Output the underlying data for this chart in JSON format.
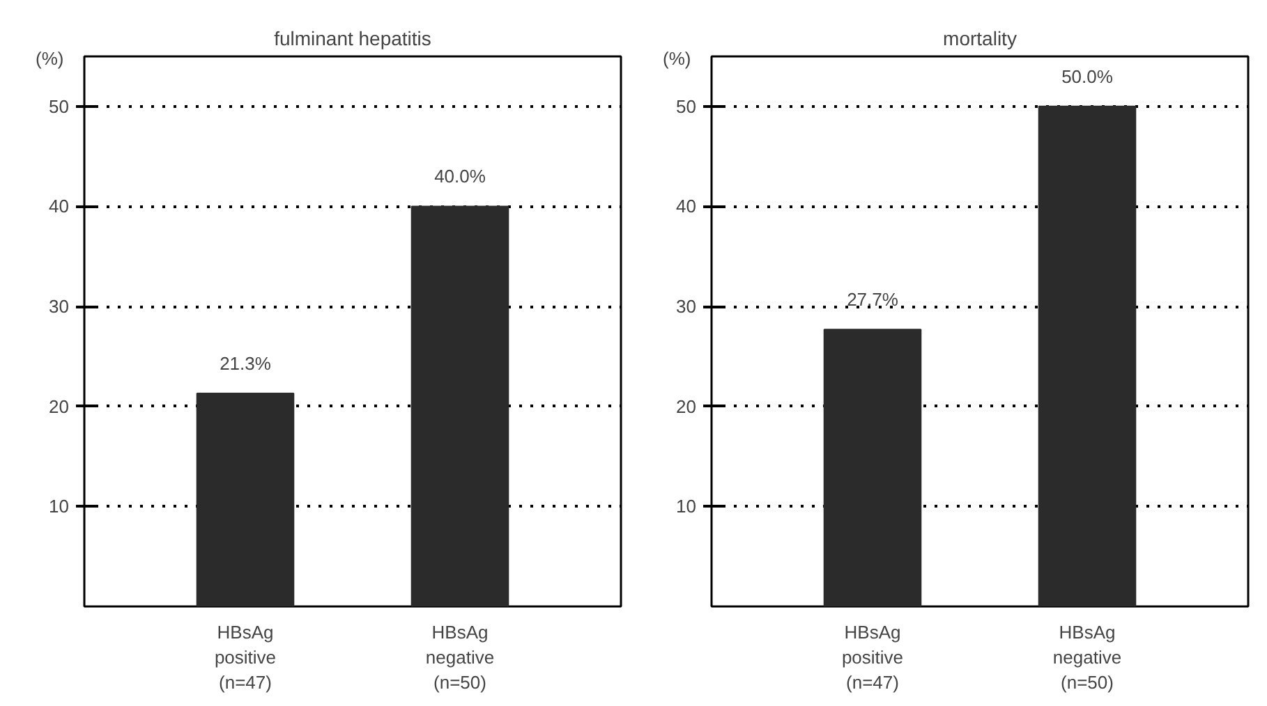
{
  "chart_data": [
    {
      "type": "bar",
      "title": "fulminant hepatitis",
      "ylabel": "(%)",
      "categories": [
        "HBsAg\npositive\n(n=47)",
        "HBsAg\nnegative\n(n=50)"
      ],
      "values": [
        21.3,
        40.0
      ],
      "value_labels": [
        "21.3%",
        "40.0%"
      ],
      "color": "#2b2b2b",
      "ylim": [
        0,
        55
      ],
      "yticks": [
        10,
        20,
        30,
        40,
        50
      ],
      "grid": "y"
    },
    {
      "type": "bar",
      "title": "mortality",
      "ylabel": "(%)",
      "categories": [
        "HBsAg\npositive\n(n=47)",
        "HBsAg\nnegative\n(n=50)"
      ],
      "values": [
        27.7,
        50.0
      ],
      "value_labels": [
        "27.7%",
        "50.0%"
      ],
      "color": "#2b2b2b",
      "ylim": [
        0,
        55
      ],
      "yticks": [
        10,
        20,
        30,
        40,
        50
      ],
      "grid": "y"
    }
  ]
}
